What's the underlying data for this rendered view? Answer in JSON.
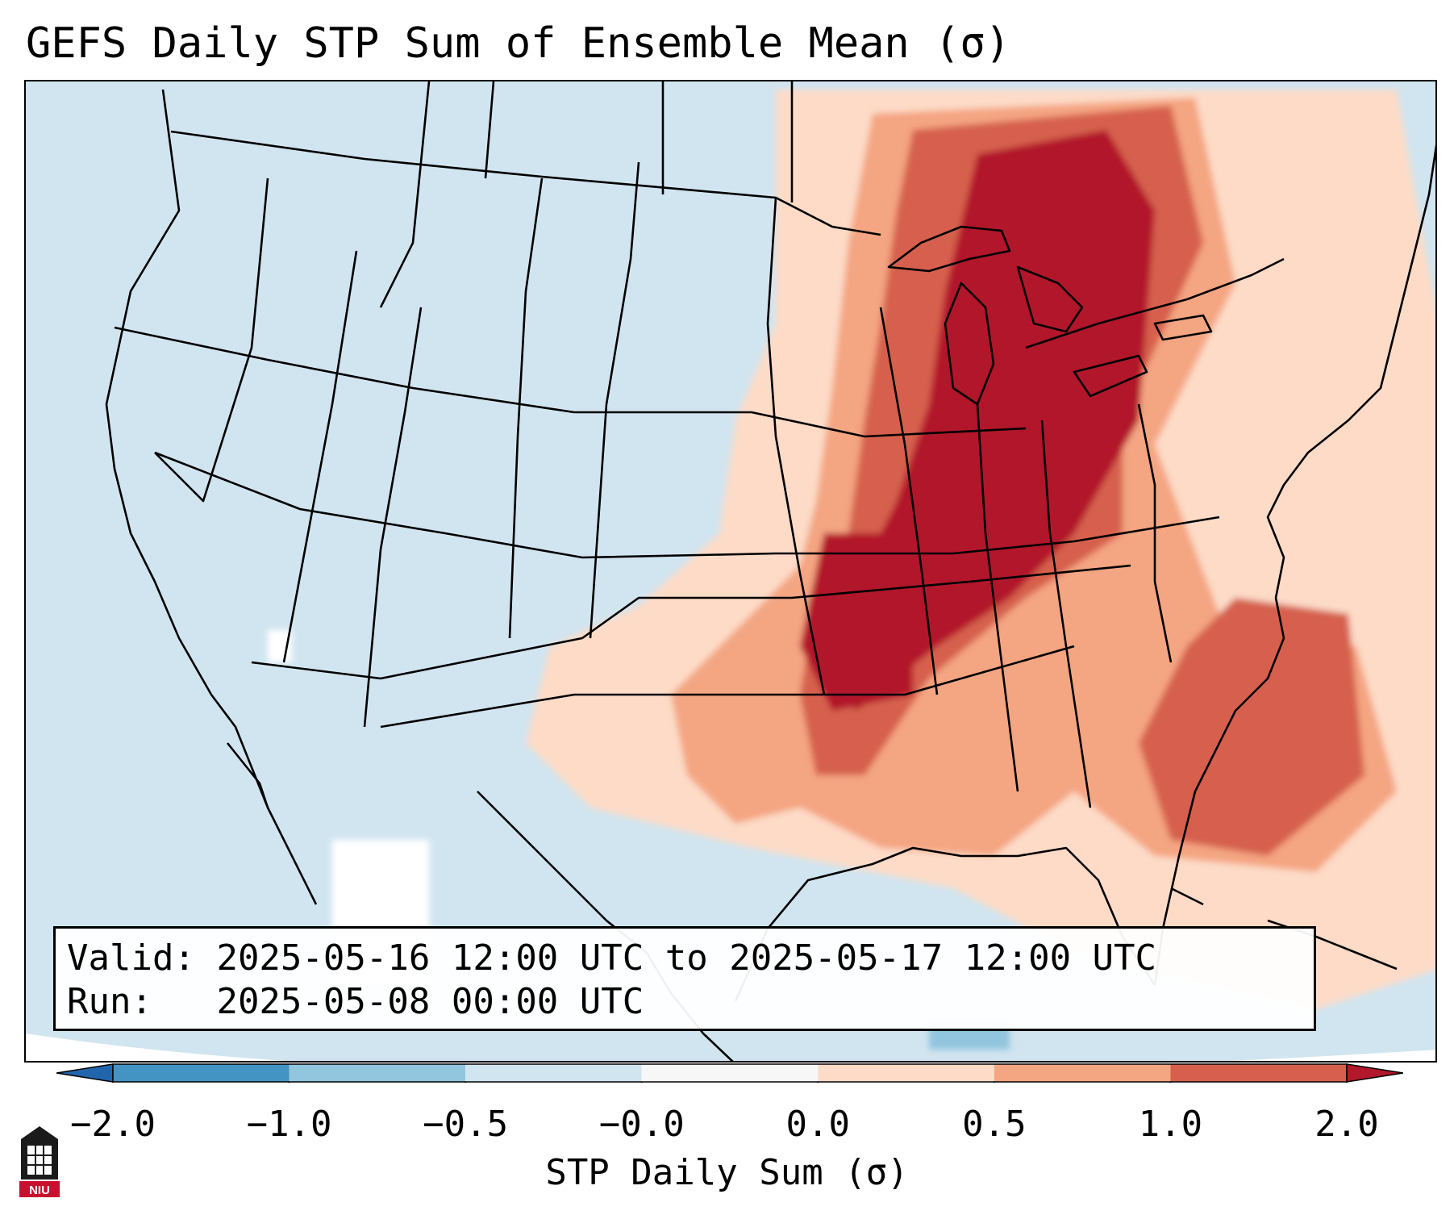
{
  "title": "GEFS Daily STP Sum of Ensemble Mean (σ)",
  "map": {
    "region": "Contiguous United States",
    "field": "STP Daily Sum anomaly"
  },
  "info": {
    "valid_label": "Valid:",
    "valid_value": "2025-05-16 12:00 UTC to 2025-05-17 12:00 UTC",
    "run_label": "Run:",
    "run_value": "2025-05-08 00:00 UTC"
  },
  "colorbar": {
    "label": "STP Daily Sum (σ)",
    "ticks": [
      "−2.0",
      "−1.0",
      "−0.5",
      "−0.0",
      "0.0",
      "0.5",
      "1.0",
      "2.0"
    ],
    "colors": [
      "#2166ac",
      "#4393c3",
      "#92c5de",
      "#d1e5f0",
      "#f7f7f7",
      "#fddbc7",
      "#f4a582",
      "#d6604d",
      "#b2182b"
    ]
  },
  "logo": {
    "text": "NIU"
  }
}
